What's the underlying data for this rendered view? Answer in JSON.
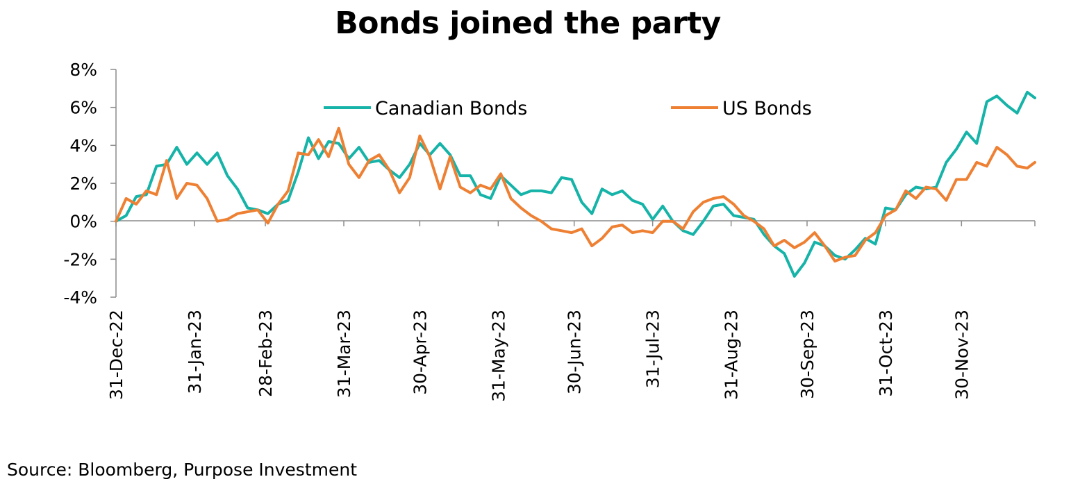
{
  "chart_data": {
    "type": "line",
    "title": "Bonds joined the party",
    "xlabel": "",
    "ylabel": "",
    "x_range": [
      "2022-12-31",
      "2023-12-29"
    ],
    "ylim": [
      -4,
      8
    ],
    "y_ticks": [
      "8%",
      "6%",
      "4%",
      "2%",
      "0%",
      "-2%",
      "-4%"
    ],
    "y_tick_values": [
      8,
      6,
      4,
      2,
      0,
      -2,
      -4
    ],
    "x_ticks": [
      "31-Dec-22",
      "31-Jan-23",
      "28-Feb-23",
      "31-Mar-23",
      "30-Apr-23",
      "31-May-23",
      "30-Jun-23",
      "31-Jul-23",
      "31-Aug-23",
      "30-Sep-23",
      "31-Oct-23",
      "30-Nov-23"
    ],
    "x_tick_dates": [
      "2022-12-31",
      "2023-01-31",
      "2023-02-28",
      "2023-03-31",
      "2023-04-30",
      "2023-05-31",
      "2023-06-30",
      "2023-07-31",
      "2023-08-31",
      "2023-09-30",
      "2023-10-31",
      "2023-11-30"
    ],
    "grid": false,
    "legend_position": "top-center",
    "series": [
      {
        "name": "Canadian Bonds",
        "color": "#15B3A8",
        "x": [
          "2022-12-31",
          "2023-01-04",
          "2023-01-08",
          "2023-01-12",
          "2023-01-16",
          "2023-01-20",
          "2023-01-24",
          "2023-01-28",
          "2023-02-01",
          "2023-02-05",
          "2023-02-09",
          "2023-02-13",
          "2023-02-17",
          "2023-02-21",
          "2023-02-25",
          "2023-03-01",
          "2023-03-05",
          "2023-03-09",
          "2023-03-13",
          "2023-03-17",
          "2023-03-21",
          "2023-03-25",
          "2023-03-29",
          "2023-04-02",
          "2023-04-06",
          "2023-04-10",
          "2023-04-14",
          "2023-04-18",
          "2023-04-22",
          "2023-04-26",
          "2023-04-30",
          "2023-05-04",
          "2023-05-08",
          "2023-05-12",
          "2023-05-16",
          "2023-05-20",
          "2023-05-24",
          "2023-05-28",
          "2023-06-01",
          "2023-06-05",
          "2023-06-09",
          "2023-06-13",
          "2023-06-17",
          "2023-06-21",
          "2023-06-25",
          "2023-06-29",
          "2023-07-03",
          "2023-07-07",
          "2023-07-11",
          "2023-07-15",
          "2023-07-19",
          "2023-07-23",
          "2023-07-27",
          "2023-07-31",
          "2023-08-04",
          "2023-08-08",
          "2023-08-12",
          "2023-08-16",
          "2023-08-20",
          "2023-08-24",
          "2023-08-28",
          "2023-09-01",
          "2023-09-05",
          "2023-09-09",
          "2023-09-13",
          "2023-09-17",
          "2023-09-21",
          "2023-09-25",
          "2023-09-29",
          "2023-10-03",
          "2023-10-07",
          "2023-10-11",
          "2023-10-15",
          "2023-10-19",
          "2023-10-23",
          "2023-10-27",
          "2023-10-31",
          "2023-11-04",
          "2023-11-08",
          "2023-11-12",
          "2023-11-16",
          "2023-11-20",
          "2023-11-24",
          "2023-11-28",
          "2023-12-02",
          "2023-12-06",
          "2023-12-10",
          "2023-12-14",
          "2023-12-18",
          "2023-12-22",
          "2023-12-26",
          "2023-12-29"
        ],
        "values": [
          0.0,
          0.3,
          1.3,
          1.4,
          2.9,
          3.0,
          3.9,
          3.0,
          3.6,
          3.0,
          3.6,
          2.4,
          1.7,
          0.7,
          0.6,
          0.4,
          0.9,
          1.1,
          2.6,
          4.4,
          3.3,
          4.2,
          4.1,
          3.3,
          3.9,
          3.1,
          3.2,
          2.7,
          2.3,
          3.0,
          4.1,
          3.5,
          4.1,
          3.5,
          2.4,
          2.4,
          1.4,
          1.2,
          2.4,
          1.9,
          1.4,
          1.6,
          1.6,
          1.5,
          2.3,
          2.2,
          1.0,
          0.4,
          1.7,
          1.4,
          1.6,
          1.1,
          0.9,
          0.1,
          0.8,
          0.0,
          -0.5,
          -0.7,
          0.0,
          0.8,
          0.9,
          0.3,
          0.2,
          0.1,
          -0.7,
          -1.3,
          -1.7,
          -2.9,
          -2.2,
          -1.1,
          -1.3,
          -1.8,
          -2.0,
          -1.5,
          -0.9,
          -1.2,
          0.7,
          0.6,
          1.4,
          1.8,
          1.7,
          1.8,
          3.1,
          3.8,
          4.7,
          4.1,
          6.3,
          6.6,
          6.1,
          5.7,
          6.8,
          6.5
        ]
      },
      {
        "name": "US Bonds",
        "color": "#EE8033",
        "x": [
          "2022-12-31",
          "2023-01-04",
          "2023-01-08",
          "2023-01-12",
          "2023-01-16",
          "2023-01-20",
          "2023-01-24",
          "2023-01-28",
          "2023-02-01",
          "2023-02-05",
          "2023-02-09",
          "2023-02-13",
          "2023-02-17",
          "2023-02-21",
          "2023-02-25",
          "2023-03-01",
          "2023-03-05",
          "2023-03-09",
          "2023-03-13",
          "2023-03-17",
          "2023-03-21",
          "2023-03-25",
          "2023-03-29",
          "2023-04-02",
          "2023-04-06",
          "2023-04-10",
          "2023-04-14",
          "2023-04-18",
          "2023-04-22",
          "2023-04-26",
          "2023-04-30",
          "2023-05-04",
          "2023-05-08",
          "2023-05-12",
          "2023-05-16",
          "2023-05-20",
          "2023-05-24",
          "2023-05-28",
          "2023-06-01",
          "2023-06-05",
          "2023-06-09",
          "2023-06-13",
          "2023-06-17",
          "2023-06-21",
          "2023-06-25",
          "2023-06-29",
          "2023-07-03",
          "2023-07-07",
          "2023-07-11",
          "2023-07-15",
          "2023-07-19",
          "2023-07-23",
          "2023-07-27",
          "2023-07-31",
          "2023-08-04",
          "2023-08-08",
          "2023-08-12",
          "2023-08-16",
          "2023-08-20",
          "2023-08-24",
          "2023-08-28",
          "2023-09-01",
          "2023-09-05",
          "2023-09-09",
          "2023-09-13",
          "2023-09-17",
          "2023-09-21",
          "2023-09-25",
          "2023-09-29",
          "2023-10-03",
          "2023-10-07",
          "2023-10-11",
          "2023-10-15",
          "2023-10-19",
          "2023-10-23",
          "2023-10-27",
          "2023-10-31",
          "2023-11-04",
          "2023-11-08",
          "2023-11-12",
          "2023-11-16",
          "2023-11-20",
          "2023-11-24",
          "2023-11-28",
          "2023-12-02",
          "2023-12-06",
          "2023-12-10",
          "2023-12-14",
          "2023-12-18",
          "2023-12-22",
          "2023-12-26",
          "2023-12-29"
        ],
        "values": [
          0.0,
          1.2,
          0.9,
          1.6,
          1.4,
          3.2,
          1.2,
          2.0,
          1.9,
          1.2,
          0.0,
          0.1,
          0.4,
          0.5,
          0.6,
          -0.1,
          0.9,
          1.6,
          3.6,
          3.5,
          4.3,
          3.4,
          4.9,
          3.0,
          2.3,
          3.2,
          3.5,
          2.7,
          1.5,
          2.3,
          4.5,
          3.4,
          1.7,
          3.4,
          1.8,
          1.5,
          1.9,
          1.7,
          2.5,
          1.2,
          0.7,
          0.3,
          0.0,
          -0.4,
          -0.5,
          -0.6,
          -0.4,
          -1.3,
          -0.9,
          -0.3,
          -0.2,
          -0.6,
          -0.5,
          -0.6,
          0.0,
          0.0,
          -0.4,
          0.5,
          1.0,
          1.2,
          1.3,
          0.9,
          0.3,
          0.0,
          -0.4,
          -1.3,
          -1.0,
          -1.4,
          -1.1,
          -0.6,
          -1.3,
          -2.1,
          -1.9,
          -1.8,
          -1.0,
          -0.6,
          0.3,
          0.6,
          1.6,
          1.2,
          1.8,
          1.7,
          1.1,
          2.2,
          2.2,
          3.1,
          2.9,
          3.9,
          3.5,
          2.9,
          2.8,
          3.1
        ]
      }
    ]
  },
  "source_note": "Source: Bloomberg, Purpose Investment"
}
